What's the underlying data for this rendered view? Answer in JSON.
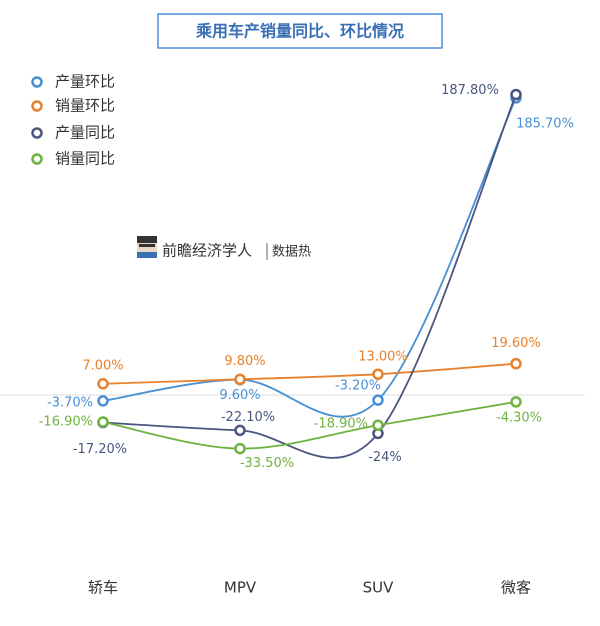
{
  "chart_data": {
    "type": "line",
    "title": "乘用车产销量同比、环比情况",
    "brand": "前瞻经济学人",
    "brand_tag": "数据热",
    "categories": [
      "轿车",
      "MPV",
      "SUV",
      "微客"
    ],
    "ylim": [
      -60,
      200
    ],
    "series": [
      {
        "name": "产量环比",
        "color": "#4a8fd4",
        "values": [
          -3.7,
          9.6,
          -3.2,
          185.7
        ],
        "value_labels": [
          "-3.70%",
          "9.60%",
          "-3.20%",
          "185.70%"
        ]
      },
      {
        "name": "销量环比",
        "color": "#e8812c",
        "values": [
          7.0,
          9.8,
          13.0,
          19.6
        ],
        "value_labels": [
          "7.00%",
          "9.80%",
          "13.00%",
          "19.60%"
        ]
      },
      {
        "name": "产量同比",
        "color": "#4a5680",
        "values": [
          -17.2,
          -22.1,
          -24,
          187.8
        ],
        "value_labels": [
          "-17.20%",
          "-22.10%",
          "-24%",
          "187.80%"
        ]
      },
      {
        "name": "销量同比",
        "color": "#6db33f",
        "values": [
          -16.9,
          -33.5,
          -18.9,
          -4.3
        ],
        "value_labels": [
          "-16.90%",
          "-33.50%",
          "-18.90%",
          "-4.30%"
        ]
      }
    ]
  }
}
